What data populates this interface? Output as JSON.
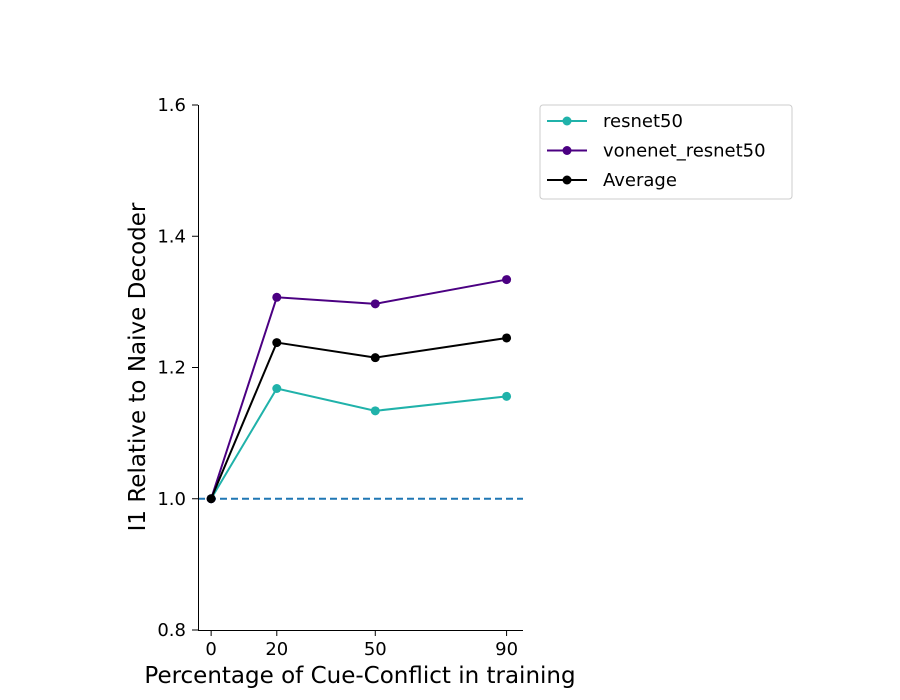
{
  "chart_data": {
    "type": "line",
    "xlabel": "Percentage of Cue-Conflict in training",
    "ylabel": "I1 Relative to Naive Decoder",
    "x": [
      0,
      20,
      50,
      90
    ],
    "xticks": [
      0,
      20,
      50,
      90
    ],
    "xlim": [
      -4,
      95
    ],
    "yticks": [
      0.8,
      1.0,
      1.2,
      1.4,
      1.6
    ],
    "ytick_labels": [
      "0.8",
      "1.0",
      "1.2",
      "1.4",
      "1.6"
    ],
    "ylim": [
      0.8,
      1.6
    ],
    "grid": false,
    "legend_position": "upper right, outside the axes",
    "reference_line": {
      "y": 1.0,
      "style": "dashed",
      "color": "#1f77b4"
    },
    "series": [
      {
        "name": "resnet50",
        "color": "#20b2aa",
        "values": [
          1.0,
          1.168,
          1.134,
          1.156
        ]
      },
      {
        "name": "vonenet_resnet50",
        "color": "#4b0082",
        "values": [
          1.0,
          1.307,
          1.297,
          1.334
        ]
      },
      {
        "name": "Average",
        "color": "#000000",
        "values": [
          1.0,
          1.238,
          1.215,
          1.245
        ]
      }
    ]
  }
}
